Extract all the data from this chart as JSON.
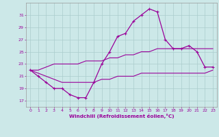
{
  "hours": [
    0,
    1,
    2,
    3,
    4,
    5,
    6,
    7,
    8,
    9,
    10,
    11,
    12,
    13,
    14,
    15,
    16,
    17,
    18,
    19,
    20,
    21,
    22,
    23
  ],
  "windchill": [
    22,
    21,
    20,
    19,
    19,
    18,
    17.5,
    17.5,
    20,
    23,
    25,
    27.5,
    28,
    30,
    31,
    32,
    31.5,
    27,
    25.5,
    25.5,
    26,
    25,
    22.5,
    22.5
  ],
  "temp_upper": [
    22,
    22,
    22.5,
    23,
    23,
    23,
    23,
    23.5,
    23.5,
    23.5,
    24,
    24,
    24.5,
    24.5,
    25,
    25,
    25.5,
    25.5,
    25.5,
    25.5,
    25.5,
    25.5,
    25.5,
    25.5
  ],
  "temp_lower": [
    22,
    21.5,
    21,
    20.5,
    20,
    20,
    20,
    20,
    20,
    20.5,
    20.5,
    21,
    21,
    21,
    21.5,
    21.5,
    21.5,
    21.5,
    21.5,
    21.5,
    21.5,
    21.5,
    21.5,
    22
  ],
  "bg_color": "#cce8e8",
  "grid_color": "#aacccc",
  "line_color": "#990099",
  "xlabel": "Windchill (Refroidissement éolien,°C)",
  "ylim": [
    16,
    33
  ],
  "yticks": [
    17,
    19,
    21,
    23,
    25,
    27,
    29,
    31
  ],
  "xlim": [
    -0.5,
    23.5
  ],
  "xtick_labels": [
    "0",
    "1",
    "2",
    "3",
    "4",
    "5",
    "6",
    "7",
    "8",
    "9",
    "10",
    "11",
    "12",
    "13",
    "14",
    "15",
    "16",
    "17",
    "18",
    "19",
    "20",
    "21",
    "22",
    "23"
  ]
}
